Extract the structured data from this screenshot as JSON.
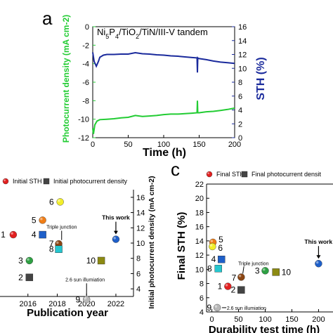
{
  "chart_data": [
    {
      "type": "line",
      "panel_label": "a",
      "title": "Ni5P4/TiO2/TiN/III-V tandem",
      "xlabel": "Time (h)",
      "ylabel": "Photocurrent density (mA cm-2)",
      "y2label": "STH (%)",
      "xlim": [
        0,
        200
      ],
      "ylim": [
        -12,
        0
      ],
      "y2lim": [
        0,
        16
      ],
      "xticks": [
        "0",
        "50",
        "100",
        "150",
        "200"
      ],
      "yticks": [
        "0",
        "-2",
        "-4",
        "-6",
        "-8",
        "-10",
        "-12"
      ],
      "y2ticks": [
        "0",
        "2",
        "4",
        "6",
        "8",
        "10",
        "12",
        "14",
        "16"
      ],
      "grid": false,
      "colors": {
        "photocurrent": "#22cc33",
        "sth": "#1a2a9c"
      },
      "series": [
        {
          "axis": "left",
          "x": [
            0,
            1,
            3,
            6,
            10,
            20,
            30,
            40,
            50,
            60,
            70,
            80,
            90,
            100,
            110,
            120,
            130,
            140,
            147,
            147.5,
            148,
            148.5,
            150,
            160,
            170,
            180,
            190,
            200
          ],
          "y": [
            -11.0,
            -11.6,
            -10.6,
            -10.2,
            -10.05,
            -10.0,
            -9.95,
            -9.85,
            -9.8,
            -9.6,
            -9.7,
            -9.65,
            -9.6,
            -9.5,
            -9.45,
            -9.45,
            -9.4,
            -9.35,
            -9.3,
            -8.0,
            -9.3,
            -9.3,
            -9.3,
            -9.2,
            -9.15,
            -9.05,
            -8.95,
            -8.8
          ]
        },
        {
          "axis": "right",
          "x": [
            0,
            2,
            5,
            8,
            10,
            15,
            20,
            30,
            40,
            50,
            60,
            70,
            80,
            90,
            100,
            110,
            120,
            130,
            140,
            147,
            147.5,
            148,
            148.5,
            150,
            160,
            170,
            180,
            190,
            200
          ],
          "y": [
            12.3,
            11.0,
            10.3,
            11.0,
            11.6,
            11.9,
            12.0,
            12.0,
            12.05,
            12.05,
            12.25,
            12.1,
            12.05,
            11.95,
            11.9,
            11.8,
            11.75,
            11.65,
            11.55,
            11.5,
            9.4,
            11.5,
            11.45,
            11.4,
            11.25,
            11.05,
            10.9,
            10.8,
            10.7
          ]
        }
      ]
    },
    {
      "type": "scatter",
      "xlabel": "Publication year",
      "y2label": "Initial photocurrent density (mA cm-2)",
      "legend": [
        "Initial STH",
        "Initial photocurrent density"
      ],
      "legend_placement": "top",
      "xlim": [
        2014,
        2023.2
      ],
      "y2lim": [
        3,
        17
      ],
      "xticks": [
        "2016",
        "2018",
        "2020",
        "2022"
      ],
      "y2ticks": [
        "4",
        "6",
        "8",
        "10",
        "12",
        "14",
        "16"
      ],
      "points": [
        {
          "label": "1",
          "x": 2015.0,
          "y": 11.1,
          "shape": "circle",
          "color": "#e21f1f"
        },
        {
          "label": "2",
          "x": 2016.1,
          "y": 5.5,
          "shape": "square",
          "color": "#444444"
        },
        {
          "label": "3",
          "x": 2016.1,
          "y": 7.7,
          "shape": "circle",
          "color": "#2ea043"
        },
        {
          "label": "4",
          "x": 2017.0,
          "y": 11.1,
          "shape": "square",
          "color": "#1e5fc9"
        },
        {
          "label": "5",
          "x": 2017.0,
          "y": 13.0,
          "shape": "circle",
          "color": "#f07d16"
        },
        {
          "label": "6",
          "x": 2018.2,
          "y": 15.4,
          "shape": "circle",
          "color": "#f2ee2a"
        },
        {
          "label": "7",
          "x": 2018.1,
          "y": 9.9,
          "shape": "circle",
          "color": "#8b4513"
        },
        {
          "label": "8",
          "x": 2018.1,
          "y": 9.2,
          "shape": "square",
          "color": "#25c7cf"
        },
        {
          "label": "9",
          "x": 2020.0,
          "y": 2.6,
          "shape": "circle",
          "color": "#b8b8b8"
        },
        {
          "label": "10",
          "x": 2021.0,
          "y": 7.7,
          "shape": "square",
          "color": "#8c8a12"
        },
        {
          "label": "This work",
          "x": 2022.0,
          "y": 10.5,
          "shape": "circle",
          "color": "#1e5fc9"
        }
      ],
      "annotations": [
        "Triple junction",
        "2.6 sun illumiation"
      ]
    },
    {
      "type": "scatter",
      "panel_label": "c",
      "xlabel": "Durability test time (h)",
      "ylabel": "Final STH (%)",
      "legend": [
        "Final STH",
        "Final photocurrent densit"
      ],
      "legend_placement": "top",
      "xlim": [
        -10,
        235
      ],
      "ylim": [
        4,
        22
      ],
      "xticks": [
        "0",
        "50",
        "100",
        "150",
        "200"
      ],
      "yticks": [
        "4",
        "6",
        "8",
        "10",
        "12",
        "14",
        "16",
        "18",
        "20",
        "22"
      ],
      "points": [
        {
          "label": "1",
          "x": 30,
          "y": 7.6,
          "shape": "circle",
          "color": "#e21f1f"
        },
        {
          "label": "2",
          "x": 55,
          "y": 7.1,
          "shape": "square",
          "color": "#444444"
        },
        {
          "label": "3",
          "x": 100,
          "y": 9.8,
          "shape": "circle",
          "color": "#2ea043"
        },
        {
          "label": "4",
          "x": 18,
          "y": 11.4,
          "shape": "square",
          "color": "#1e5fc9"
        },
        {
          "label": "5",
          "x": 2,
          "y": 13.8,
          "shape": "circle",
          "color": "#f07d16"
        },
        {
          "label": "6",
          "x": 1,
          "y": 13.2,
          "shape": "circle",
          "color": "#f2ee2a"
        },
        {
          "label": "7",
          "x": 55,
          "y": 8.9,
          "shape": "circle",
          "color": "#8b4513"
        },
        {
          "label": "8",
          "x": 12,
          "y": 10.1,
          "shape": "square",
          "color": "#25c7cf"
        },
        {
          "label": "9",
          "x": 10,
          "y": 4.6,
          "shape": "circle",
          "color": "#b8b8b8"
        },
        {
          "label": "10",
          "x": 120,
          "y": 9.6,
          "shape": "square",
          "color": "#8c8a12"
        },
        {
          "label": "This work",
          "x": 200,
          "y": 10.8,
          "shape": "circle",
          "color": "#1e5fc9"
        }
      ],
      "annotations": [
        "Triple junction",
        "2.6 sun illumiation"
      ]
    }
  ]
}
